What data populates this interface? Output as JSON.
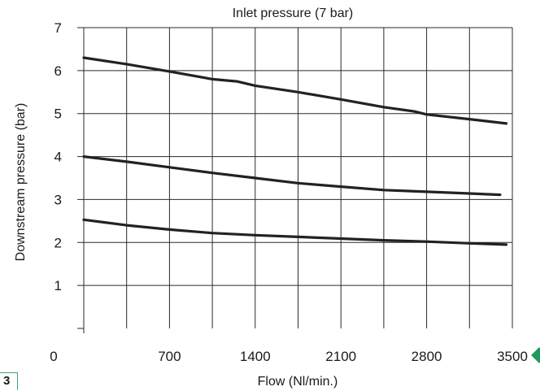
{
  "chart_data": {
    "type": "line",
    "title": "Inlet pressure (7 bar)",
    "xlabel": "Flow (Nl/min.)",
    "ylabel": "Downstream pressure (bar)",
    "xlim": [
      0,
      3500
    ],
    "ylim": [
      0,
      7
    ],
    "x_ticks": [
      0,
      700,
      1400,
      2100,
      2800,
      3500
    ],
    "x_tick_labels": [
      "0",
      "700",
      "1400",
      "2100",
      "2800",
      "3500"
    ],
    "y_ticks": [
      1,
      2,
      3,
      4,
      5,
      6,
      7
    ],
    "y_tick_labels": [
      "1",
      "2",
      "3",
      "4",
      "5",
      "6",
      "7"
    ],
    "x_grid_step": 350,
    "grid": true,
    "legend": "none",
    "series": [
      {
        "x": [
          0,
          350,
          700,
          1050,
          1250,
          1400,
          1750,
          2100,
          2450,
          2700,
          2800,
          3150,
          3450
        ],
        "y": [
          6.3,
          6.15,
          5.98,
          5.8,
          5.75,
          5.65,
          5.5,
          5.33,
          5.15,
          5.05,
          4.98,
          4.87,
          4.77
        ]
      },
      {
        "x": [
          0,
          350,
          700,
          1050,
          1400,
          1750,
          2100,
          2450,
          2800,
          3150,
          3400
        ],
        "y": [
          4.0,
          3.88,
          3.75,
          3.62,
          3.5,
          3.38,
          3.3,
          3.22,
          3.18,
          3.14,
          3.11
        ]
      },
      {
        "x": [
          0,
          350,
          700,
          1050,
          1400,
          1750,
          2100,
          2450,
          2800,
          3150,
          3450
        ],
        "y": [
          2.53,
          2.4,
          2.3,
          2.22,
          2.17,
          2.13,
          2.09,
          2.05,
          2.02,
          1.98,
          1.95
        ]
      }
    ]
  },
  "figure": {
    "number_badge": "3",
    "marker_color": "#1e9a5a",
    "badge_border_color": "#3fa66a"
  }
}
